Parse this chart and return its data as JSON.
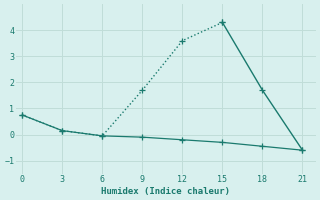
{
  "xlabel": "Humidex (Indice chaleur)",
  "line1_x": [
    0,
    3,
    6,
    9,
    12,
    15
  ],
  "line1_y": [
    0.75,
    0.15,
    -0.05,
    1.7,
    3.6,
    4.3
  ],
  "line2_x": [
    15,
    18,
    21
  ],
  "line2_y": [
    4.3,
    1.7,
    -0.6
  ],
  "line3_x": [
    0,
    3,
    6,
    9,
    12,
    15,
    18,
    21
  ],
  "line3_y": [
    0.75,
    0.15,
    -0.05,
    -0.1,
    -0.2,
    -0.3,
    -0.45,
    -0.6
  ],
  "line_color": "#1a7a6e",
  "bg_color": "#d8f0ee",
  "grid_color": "#c0ddd8",
  "xlim": [
    -0.5,
    22
  ],
  "ylim": [
    -1.5,
    5.0
  ],
  "xticks": [
    0,
    3,
    6,
    9,
    12,
    15,
    18,
    21
  ],
  "yticks": [
    -1,
    0,
    1,
    2,
    3,
    4
  ],
  "marker": "+"
}
